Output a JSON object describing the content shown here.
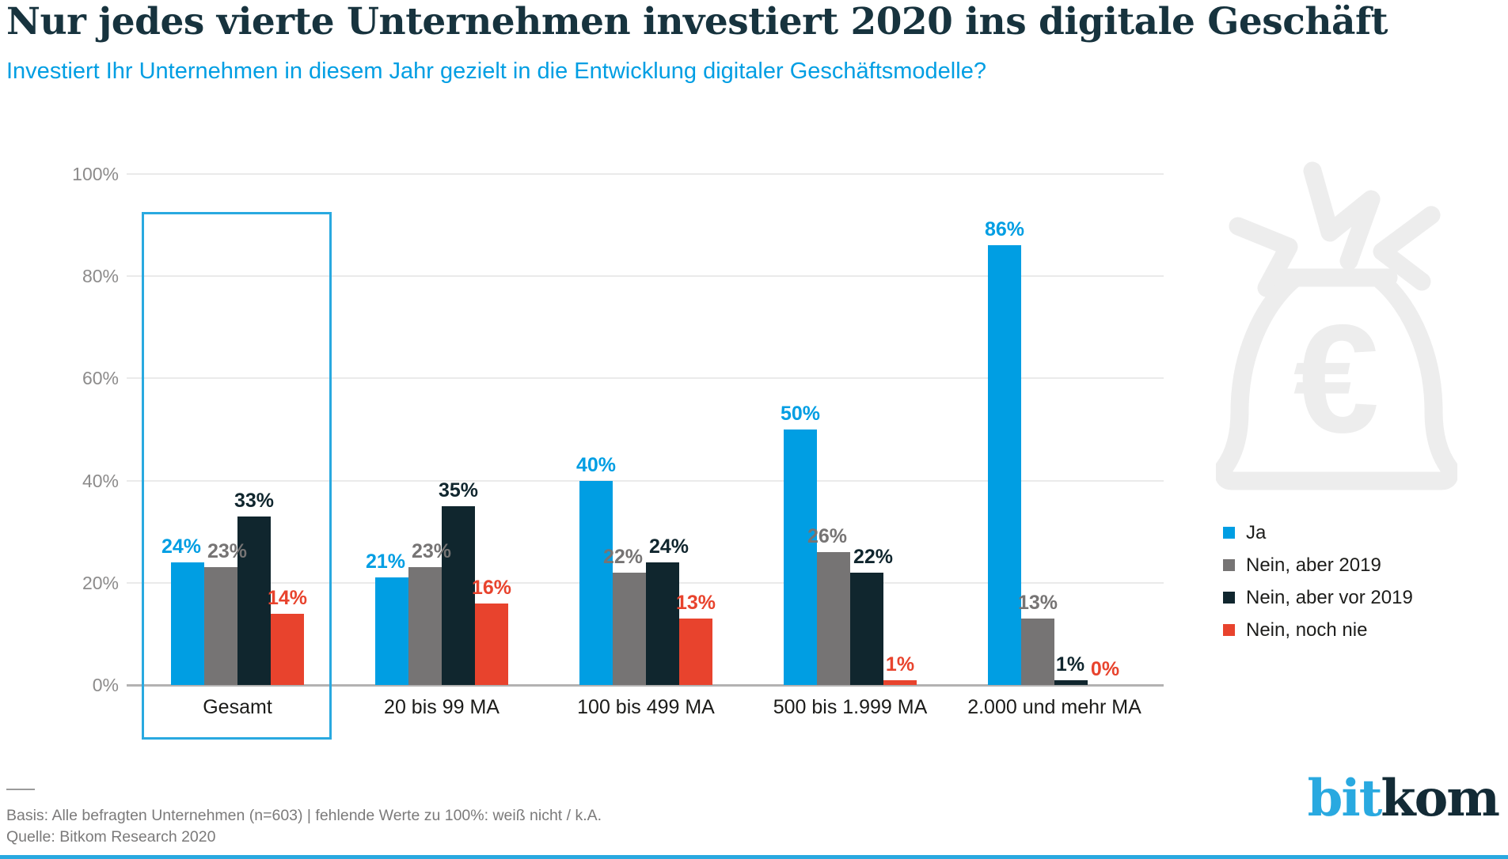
{
  "header": {
    "title": "Nur jedes vierte Unternehmen investiert 2020 ins digitale Geschäft",
    "subtitle": "Investiert Ihr Unternehmen in diesem Jahr gezielt in die Entwicklung digitaler Geschäftsmodelle?"
  },
  "chart_data": {
    "type": "bar",
    "categories": [
      "Gesamt",
      "20 bis 99 MA",
      "100 bis 499 MA",
      "500 bis 1.999 MA",
      "2.000 und mehr MA"
    ],
    "series": [
      {
        "name": "Ja",
        "color": "#009EE3",
        "values": [
          24,
          21,
          40,
          50,
          86
        ]
      },
      {
        "name": "Nein, aber 2019",
        "color": "#767474",
        "values": [
          23,
          23,
          22,
          26,
          13
        ]
      },
      {
        "name": "Nein, aber vor 2019",
        "color": "#10262E",
        "values": [
          33,
          35,
          24,
          22,
          1
        ]
      },
      {
        "name": "Nein, noch nie",
        "color": "#E8432D",
        "values": [
          14,
          16,
          13,
          1,
          0
        ]
      }
    ],
    "value_suffix": "%",
    "ylim": [
      0,
      100
    ],
    "yticks": [
      0,
      20,
      40,
      60,
      80,
      100
    ],
    "grid": true,
    "legend_position": "right",
    "highlighted_category": "Gesamt",
    "title": "",
    "xlabel": "",
    "ylabel": ""
  },
  "colors": {
    "accent_blue": "#009EE3",
    "highlight_border": "#29A9E0",
    "title_dark": "#17333E",
    "axis_label_gray": "#8C8B8B",
    "gridline_gray": "#EAEAEA",
    "baseline_gray": "#B3B2B2",
    "watermark_gray": "#EDEDED",
    "footer_gray": "#7B7A7A"
  },
  "icons": {
    "money_bag": "money-bag-euro-icon"
  },
  "footer": {
    "basis": "Basis: Alle befragten Unternehmen (n=603) | fehlende Werte zu 100%: weiß nicht / k.A.",
    "source": "Quelle: Bitkom Research 2020",
    "logo": {
      "part1": "bit",
      "part2": "kom"
    }
  }
}
